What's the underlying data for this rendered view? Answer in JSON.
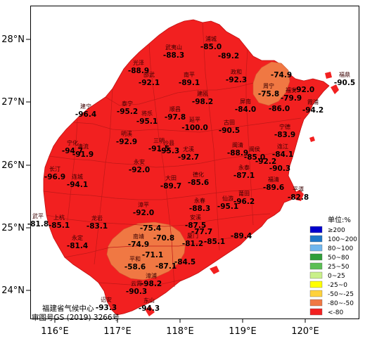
{
  "axes": {
    "x_ticks": [
      "116°E",
      "117°E",
      "118°E",
      "119°E",
      "120°E"
    ],
    "y_ticks": [
      "28°N",
      "27°N",
      "26°N",
      "25°N",
      "24°N"
    ]
  },
  "legend": {
    "title": "单位:%",
    "items": [
      {
        "label": "≥200",
        "color": "#0000cd"
      },
      {
        "label": "100~200",
        "color": "#1e78c8"
      },
      {
        "label": "80~100",
        "color": "#6fb6ee"
      },
      {
        "label": "50~80",
        "color": "#2f9e3a"
      },
      {
        "label": "25~50",
        "color": "#5bbf54"
      },
      {
        "label": "0~25",
        "color": "#c9f08a"
      },
      {
        "label": "-25~0",
        "color": "#ffff00"
      },
      {
        "label": "-50~-25",
        "color": "#ffd23c"
      },
      {
        "label": "-80~-50",
        "color": "#f07843"
      },
      {
        "label": "<-80",
        "color": "#f22020"
      }
    ]
  },
  "credit": {
    "line1": "福建省气候中心",
    "line2": "审图号GS (2019) 3266号"
  },
  "stations": [
    {
      "name": "浦城",
      "value": "-85.0"
    },
    {
      "name": "武夷山",
      "value": "-88.3"
    },
    {
      "name": "",
      "value": "-89.2"
    },
    {
      "name": "光泽",
      "value": "-88.9"
    },
    {
      "name": "邵武",
      "value": "-92.1"
    },
    {
      "name": "南平",
      "value": "-89.1"
    },
    {
      "name": "政和",
      "value": "-92.3"
    },
    {
      "name": "",
      "value": "-74.9"
    },
    {
      "name": "福鼎",
      "value": "-90.5"
    },
    {
      "name": "周宁",
      "value": "-75.8"
    },
    {
      "name": "福安",
      "value": "-79.9"
    },
    {
      "name": "",
      "value": "-92.0"
    },
    {
      "name": "建宁",
      "value": "-96.4"
    },
    {
      "name": "泰宁",
      "value": "-95.2"
    },
    {
      "name": "将乐",
      "value": "-95.1"
    },
    {
      "name": "顺昌",
      "value": "-97.8"
    },
    {
      "name": "建瓯",
      "value": "-98.2"
    },
    {
      "name": "屏南",
      "value": "-84.0"
    },
    {
      "name": "",
      "value": "-86.0"
    },
    {
      "name": "霞浦",
      "value": "-94.2"
    },
    {
      "name": "明溪",
      "value": "-92.9"
    },
    {
      "name": "延平",
      "value": "-100.0"
    },
    {
      "name": "古田",
      "value": "-90.5"
    },
    {
      "name": "宁德",
      "value": "-83.9"
    },
    {
      "name": "宁化",
      "value": "-94.7"
    },
    {
      "name": "清流",
      "value": "-91.9"
    },
    {
      "name": "沙县",
      "value": "-95.3"
    },
    {
      "name": "三明",
      "value": "-91.5"
    },
    {
      "name": "尤溪",
      "value": "-92.7"
    },
    {
      "name": "闽清",
      "value": "-88.9"
    },
    {
      "name": "闽侯",
      "value": "-85.0"
    },
    {
      "name": "连江",
      "value": "-84.1"
    },
    {
      "name": "",
      "value": "-92.2"
    },
    {
      "name": "永安",
      "value": "-92.0"
    },
    {
      "name": "长汀",
      "value": "-96.9"
    },
    {
      "name": "连城",
      "value": "-94.1"
    },
    {
      "name": "大田",
      "value": "-89.7"
    },
    {
      "name": "德化",
      "value": "-85.6"
    },
    {
      "name": "永泰",
      "value": "-87.1"
    },
    {
      "name": "",
      "value": "-90.3"
    },
    {
      "name": "福清",
      "value": "-89.6"
    },
    {
      "name": "平潭",
      "value": "-82.8"
    },
    {
      "name": "永春",
      "value": "-88.3"
    },
    {
      "name": "仙游",
      "value": "-95.1"
    },
    {
      "name": "莆田",
      "value": "-96.2"
    },
    {
      "name": "武平",
      "value": "-81.8"
    },
    {
      "name": "上杭",
      "value": "-85.1"
    },
    {
      "name": "漳平",
      "value": "-92.0"
    },
    {
      "name": "龙岩",
      "value": "-83.1"
    },
    {
      "name": "",
      "value": "-75.4"
    },
    {
      "name": "安溪",
      "value": "-87.5"
    },
    {
      "name": "",
      "value": "-77.7"
    },
    {
      "name": "",
      "value": "-89.4"
    },
    {
      "name": "",
      "value": "-85.1"
    },
    {
      "name": "永定",
      "value": "-81.4"
    },
    {
      "name": "",
      "value": "-70.8"
    },
    {
      "name": "南靖",
      "value": "-74.9"
    },
    {
      "name": "",
      "value": "-71.1"
    },
    {
      "name": "厦门",
      "value": "-81.2"
    },
    {
      "name": "",
      "value": "-87.1"
    },
    {
      "name": "",
      "value": "-84.5"
    },
    {
      "name": "平和",
      "value": "-58.6"
    },
    {
      "name": "漳浦",
      "value": "-98.2"
    },
    {
      "name": "云霄",
      "value": "-90.3"
    },
    {
      "name": "诏安",
      "value": "-93.3"
    },
    {
      "name": "东山",
      "value": "-94.3"
    }
  ]
}
